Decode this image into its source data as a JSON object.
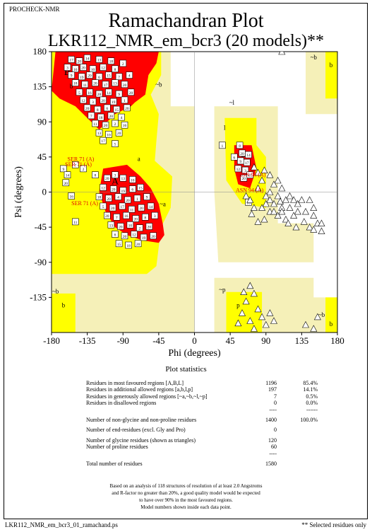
{
  "header": {
    "program": "PROCHECK-NMR",
    "title": "Ramachandran Plot",
    "subtitle": "LKR112_NMR_em_bcr3 (20 models)**"
  },
  "chart_data": {
    "type": "scatter",
    "title": "Ramachandran Plot",
    "subtitle": "LKR112_NMR_em_bcr3 (20 models)**",
    "xlabel": "Phi (degrees)",
    "ylabel": "Psi (degrees)",
    "xlim": [
      -180,
      180
    ],
    "ylim": [
      -180,
      180
    ],
    "xticks": [
      -180,
      -135,
      -90,
      -45,
      0,
      45,
      90,
      135,
      180
    ],
    "yticks": [
      -135,
      -90,
      -45,
      0,
      45,
      90,
      135,
      180
    ],
    "grid": false,
    "region_colors": {
      "most_favoured": "#ff0000",
      "additional_allowed": "#ffff00",
      "generously_allowed": "#f5f0b8",
      "disallowed": "#ffffff"
    },
    "region_labels": [
      {
        "text": "A",
        "phi": -100,
        "psi": 10
      },
      {
        "text": "B",
        "phi": -160,
        "psi": 150
      },
      {
        "text": "L",
        "phi": 62,
        "psi": 45
      },
      {
        "text": "a",
        "phi": -70,
        "psi": 40
      },
      {
        "text": "b",
        "phi": -155,
        "psi": 133
      },
      {
        "text": "l",
        "phi": 38,
        "psi": 80
      },
      {
        "text": "p",
        "phi": 55,
        "psi": -148
      },
      {
        "text": "~a",
        "phi": -40,
        "psi": -18
      },
      {
        "text": "~b",
        "phi": -45,
        "psi": 135
      },
      {
        "text": "~l",
        "phi": 47,
        "psi": 112
      },
      {
        "text": "~p",
        "phi": 35,
        "psi": -128
      },
      {
        "text": "~b",
        "phi": -175,
        "psi": -130
      },
      {
        "text": "b",
        "phi": -165,
        "psi": -148
      },
      {
        "text": "~b",
        "phi": 150,
        "psi": 170
      },
      {
        "text": "b",
        "phi": 172,
        "psi": 160
      },
      {
        "text": "~b",
        "phi": 160,
        "psi": -160
      },
      {
        "text": "b",
        "phi": 172,
        "psi": -172
      }
    ],
    "residue_labels": [
      {
        "text": "SER 71 (A)",
        "phi": -160,
        "psi": 40
      },
      {
        "text": "SER 71 (A)",
        "phi": -163,
        "psi": 33
      },
      {
        "text": "SER 71 (A)",
        "phi": -155,
        "psi": -17
      },
      {
        "text": "ASN 94 (A)",
        "phi": 55,
        "psi": 20
      },
      {
        "text": "ASN 94 (A)",
        "phi": 52,
        "psi": 0
      }
    ],
    "series": [
      {
        "name": "non-glycine residues (squares, model numbers)",
        "points": [
          [
            -155,
            170,
            "17"
          ],
          [
            -145,
            168,
            "20"
          ],
          [
            -135,
            172,
            "14"
          ],
          [
            -120,
            170,
            "13"
          ],
          [
            -105,
            168,
            "18"
          ],
          [
            -90,
            165,
            "2"
          ],
          [
            -160,
            160,
            "3"
          ],
          [
            -150,
            158,
            "16"
          ],
          [
            -140,
            160,
            "20"
          ],
          [
            -128,
            158,
            "10"
          ],
          [
            -115,
            160,
            "12"
          ],
          [
            -100,
            158,
            "8"
          ],
          [
            -155,
            150,
            "9"
          ],
          [
            -142,
            148,
            "19"
          ],
          [
            -132,
            150,
            "20"
          ],
          [
            -120,
            148,
            "6"
          ],
          [
            -108,
            150,
            "15"
          ],
          [
            -95,
            148,
            "7"
          ],
          [
            -82,
            150,
            "4"
          ],
          [
            -150,
            140,
            "18"
          ],
          [
            -138,
            138,
            "11"
          ],
          [
            -125,
            140,
            "20"
          ],
          [
            -112,
            138,
            "17"
          ],
          [
            -100,
            140,
            "13"
          ],
          [
            -88,
            138,
            "20"
          ],
          [
            -145,
            128,
            "5"
          ],
          [
            -132,
            128,
            "16"
          ],
          [
            -120,
            126,
            "20"
          ],
          [
            -108,
            128,
            "14"
          ],
          [
            -95,
            126,
            "9"
          ],
          [
            -80,
            128,
            "20"
          ],
          [
            -140,
            118,
            "12"
          ],
          [
            -128,
            116,
            "3"
          ],
          [
            -115,
            118,
            "20"
          ],
          [
            -102,
            116,
            "19"
          ],
          [
            -88,
            118,
            "1"
          ],
          [
            -135,
            108,
            "20"
          ],
          [
            -122,
            106,
            "8"
          ],
          [
            -110,
            108,
            "6"
          ],
          [
            -98,
            106,
            "15"
          ],
          [
            -85,
            108,
            "20"
          ],
          [
            -130,
            98,
            "7"
          ],
          [
            -118,
            96,
            "18"
          ],
          [
            -105,
            98,
            "20"
          ],
          [
            -92,
            96,
            "4"
          ],
          [
            -125,
            88,
            "11"
          ],
          [
            -112,
            86,
            "20"
          ],
          [
            -100,
            88,
            "2"
          ],
          [
            -88,
            86,
            "16"
          ],
          [
            -120,
            76,
            "13"
          ],
          [
            -108,
            74,
            "10"
          ],
          [
            -95,
            76,
            "20"
          ],
          [
            -115,
            66,
            "17"
          ],
          [
            -100,
            62,
            "5"
          ],
          [
            -165,
            30,
            "9"
          ],
          [
            -160,
            22,
            "14"
          ],
          [
            -162,
            12,
            "20"
          ],
          [
            -150,
            35,
            "7"
          ],
          [
            -140,
            30,
            "2"
          ],
          [
            -125,
            22,
            "8"
          ],
          [
            -155,
            -5,
            "16"
          ],
          [
            -150,
            -38,
            "11"
          ],
          [
            -110,
            18,
            "20"
          ],
          [
            -100,
            22,
            "3"
          ],
          [
            -90,
            18,
            "13"
          ],
          [
            -78,
            16,
            "10"
          ],
          [
            -115,
            6,
            "12"
          ],
          [
            -102,
            4,
            "20"
          ],
          [
            -90,
            2,
            "19"
          ],
          [
            -78,
            4,
            "6"
          ],
          [
            -68,
            6,
            "15"
          ],
          [
            -120,
            -6,
            "18"
          ],
          [
            -108,
            -8,
            "20"
          ],
          [
            -96,
            -6,
            "4"
          ],
          [
            -84,
            -10,
            "20"
          ],
          [
            -72,
            -8,
            "1"
          ],
          [
            -60,
            -6,
            "9"
          ],
          [
            -115,
            -18,
            "5"
          ],
          [
            -103,
            -20,
            "20"
          ],
          [
            -91,
            -18,
            "17"
          ],
          [
            -79,
            -22,
            "11"
          ],
          [
            -67,
            -20,
            "20"
          ],
          [
            -55,
            -18,
            "14"
          ],
          [
            -110,
            -30,
            "20"
          ],
          [
            -98,
            -32,
            "7"
          ],
          [
            -86,
            -30,
            "16"
          ],
          [
            -74,
            -34,
            "20"
          ],
          [
            -62,
            -32,
            "8"
          ],
          [
            -50,
            -30,
            "3"
          ],
          [
            -105,
            -42,
            "13"
          ],
          [
            -93,
            -44,
            "20"
          ],
          [
            -81,
            -42,
            "10"
          ],
          [
            -69,
            -46,
            "2"
          ],
          [
            -57,
            -44,
            "20"
          ],
          [
            -100,
            -54,
            "6"
          ],
          [
            -88,
            -56,
            "20"
          ],
          [
            -76,
            -54,
            "12"
          ],
          [
            -64,
            -58,
            "19"
          ],
          [
            -52,
            -56,
            "20"
          ],
          [
            -95,
            -66,
            "15"
          ],
          [
            -83,
            -68,
            "18"
          ],
          [
            -71,
            -66,
            "20"
          ],
          [
            60,
            50,
            "20"
          ],
          [
            58,
            40,
            "9"
          ],
          [
            66,
            38,
            "17"
          ],
          [
            64,
            28,
            "3"
          ],
          [
            55,
            30,
            "12"
          ],
          [
            50,
            45,
            "6"
          ],
          [
            68,
            48,
            "14"
          ],
          [
            62,
            18,
            "20"
          ],
          [
            70,
            22,
            "11"
          ],
          [
            57,
            60,
            "8"
          ],
          [
            35,
            60,
            "1"
          ],
          [
            68,
            -13,
            "16"
          ]
        ]
      },
      {
        "name": "glycine residues (triangles)",
        "points": [
          [
            110,
            180
          ],
          [
            145,
            -10
          ],
          [
            125,
            -10
          ],
          [
            75,
            32
          ],
          [
            88,
            28
          ],
          [
            80,
            25
          ],
          [
            95,
            22
          ],
          [
            105,
            15
          ],
          [
            110,
            5
          ],
          [
            100,
            10
          ],
          [
            85,
            15
          ],
          [
            95,
            0
          ],
          [
            105,
            -5
          ],
          [
            115,
            -10
          ],
          [
            80,
            5
          ],
          [
            90,
            -5
          ],
          [
            100,
            -15
          ],
          [
            110,
            -20
          ],
          [
            120,
            -5
          ],
          [
            130,
            -15
          ],
          [
            85,
            -20
          ],
          [
            95,
            -25
          ],
          [
            105,
            -30
          ],
          [
            70,
            -10
          ],
          [
            75,
            -20
          ],
          [
            88,
            -35
          ],
          [
            140,
            -25
          ],
          [
            150,
            -30
          ],
          [
            155,
            -40
          ],
          [
            160,
            -50
          ],
          [
            110,
            -25
          ],
          [
            120,
            -20
          ],
          [
            130,
            -25
          ],
          [
            125,
            -30
          ],
          [
            135,
            -10
          ],
          [
            90,
            -15
          ],
          [
            100,
            -25
          ],
          [
            115,
            -35
          ],
          [
            145,
            -45
          ],
          [
            150,
            -48
          ],
          [
            150,
            -20
          ],
          [
            138,
            -38
          ],
          [
            160,
            -40
          ],
          [
            95,
            -10
          ],
          [
            108,
            -12
          ],
          [
            65,
            -5
          ],
          [
            72,
            -28
          ],
          [
            80,
            -38
          ],
          [
            118,
            -40
          ],
          [
            128,
            -45
          ],
          [
            70,
            -120
          ],
          [
            75,
            -130
          ],
          [
            65,
            -140
          ],
          [
            80,
            -150
          ],
          [
            85,
            -160
          ],
          [
            70,
            -165
          ],
          [
            60,
            -155
          ],
          [
            90,
            -170
          ],
          [
            100,
            -165
          ],
          [
            75,
            -175
          ],
          [
            55,
            -168
          ],
          [
            95,
            -155
          ],
          [
            62,
            -128
          ],
          [
            140,
            -170
          ],
          [
            150,
            -175
          ],
          [
            155,
            -160
          ]
        ]
      }
    ]
  },
  "stats": {
    "heading": "Plot statistics",
    "rows": [
      {
        "label": "Residues in most favoured regions  [A,B,L]",
        "count": "1196",
        "pct": "85.4%"
      },
      {
        "label": "Residues in additional allowed regions  [a,b,l,p]",
        "count": "197",
        "pct": "14.1%"
      },
      {
        "label": "Residues in generously allowed regions  [~a,~b,~l,~p]",
        "count": "7",
        "pct": "0.5%"
      },
      {
        "label": "Residues in disallowed regions",
        "count": "0",
        "pct": "0.0%"
      },
      {
        "label": "",
        "count": "----",
        "pct": "------"
      },
      {
        "label": "Number of non-glycine and non-proline residues",
        "count": "1400",
        "pct": "100.0%"
      },
      {
        "label": "Number of end-residues (excl. Gly and Pro)",
        "count": "0",
        "pct": ""
      },
      {
        "label": "Number of glycine residues (shown as triangles)",
        "count": "120",
        "pct": ""
      },
      {
        "label": "Number of proline residues",
        "count": "60",
        "pct": ""
      },
      {
        "label": "",
        "count": "----",
        "pct": ""
      },
      {
        "label": "Total number of residues",
        "count": "1580",
        "pct": ""
      }
    ]
  },
  "footnote": {
    "line1": "Based on an analysis of 118 structures of resolution of at least 2.0 Angstroms",
    "line2": "and R-factor no greater than 20%, a good quality model would be expected",
    "line3": "to have over 90% in the most favoured regions.",
    "line4": "Model numbers shown inside each data point."
  },
  "footer": {
    "filename": "LKR112_NMR_em_bcr3_01_ramachand.ps",
    "note": "** Selected residues only"
  }
}
